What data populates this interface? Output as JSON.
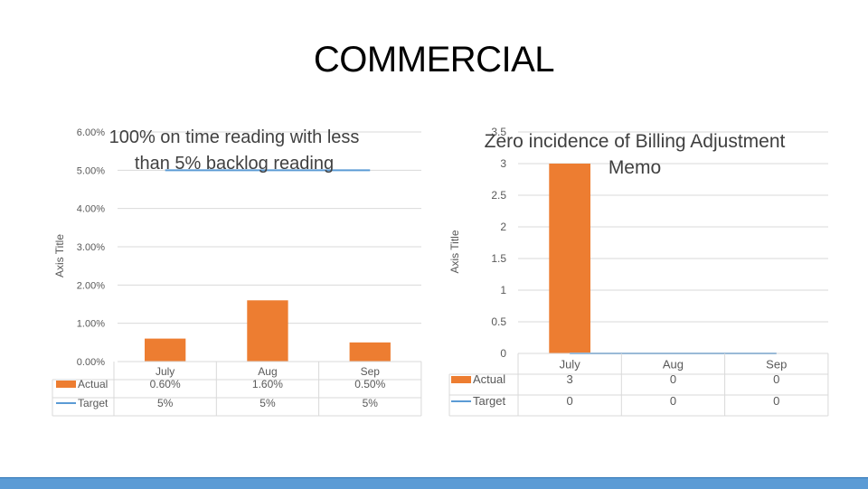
{
  "slide": {
    "title": "COMMERCIAL"
  },
  "colors": {
    "actual": "#ed7d31",
    "target": "#5b9bd5",
    "grid": "#d9d9d9",
    "text": "#595959",
    "footer": "#5b9bd5"
  },
  "chart_data": [
    {
      "type": "bar",
      "title": "100% on time reading with less than 5% backlog reading",
      "title_lines": [
        "100% on time reading with less",
        "than 5% backlog reading"
      ],
      "xlabel": "",
      "ylabel": "Axis Title",
      "ylim": [
        0,
        6
      ],
      "yticks": [
        "0.00%",
        "1.00%",
        "2.00%",
        "3.00%",
        "4.00%",
        "5.00%",
        "6.00%"
      ],
      "categories": [
        "July",
        "Aug",
        "Sep"
      ],
      "series": [
        {
          "name": "Actual",
          "type": "bar",
          "values": [
            0.6,
            1.6,
            0.5
          ],
          "labels": [
            "0.60%",
            "1.60%",
            "0.50%"
          ]
        },
        {
          "name": "Target",
          "type": "line",
          "values": [
            5,
            5,
            5
          ],
          "labels": [
            "5%",
            "5%",
            "5%"
          ]
        }
      ],
      "data_table": true,
      "grid": true
    },
    {
      "type": "bar",
      "title": "Zero incidence of Billing Adjustment Memo",
      "title_lines": [
        "Zero incidence of Billing Adjustment",
        "Memo"
      ],
      "xlabel": "",
      "ylabel": "Axis Title",
      "ylim": [
        0,
        3.5
      ],
      "yticks": [
        "0",
        "0.5",
        "1",
        "1.5",
        "2",
        "2.5",
        "3",
        "3.5"
      ],
      "categories": [
        "July",
        "Aug",
        "Sep"
      ],
      "series": [
        {
          "name": "Actual",
          "type": "bar",
          "values": [
            3,
            0,
            0
          ],
          "labels": [
            "3",
            "0",
            "0"
          ]
        },
        {
          "name": "Target",
          "type": "line",
          "values": [
            0,
            0,
            0
          ],
          "labels": [
            "0",
            "0",
            "0"
          ]
        }
      ],
      "data_table": true,
      "grid": true
    }
  ]
}
